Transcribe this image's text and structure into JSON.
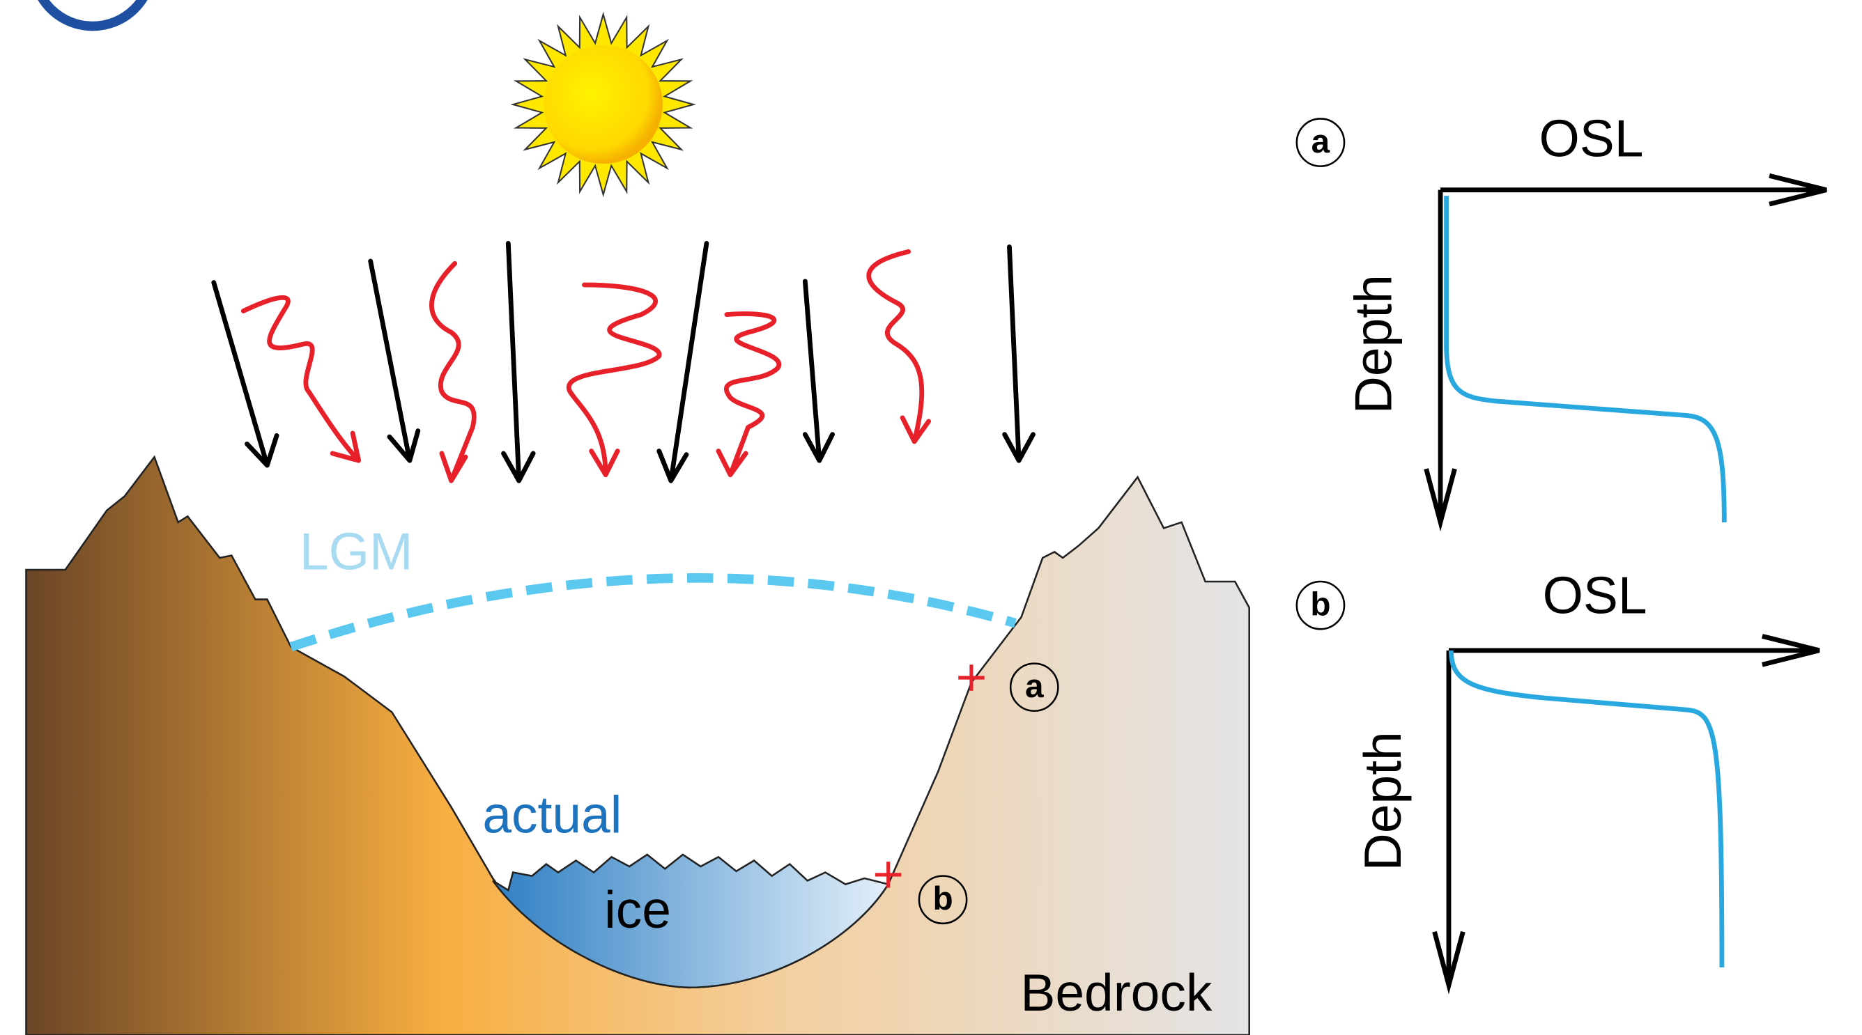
{
  "diagram": {
    "labels": {
      "lgm": "LGM",
      "actual": "actual",
      "ice": "ice",
      "bedrock": "Bedrock",
      "site_a": "a",
      "site_b": "b"
    },
    "panels": [
      {
        "label": "a",
        "x_axis": "OSL",
        "y_axis": "Depth"
      },
      {
        "label": "b",
        "x_axis": "OSL",
        "y_axis": "Depth"
      }
    ]
  }
}
